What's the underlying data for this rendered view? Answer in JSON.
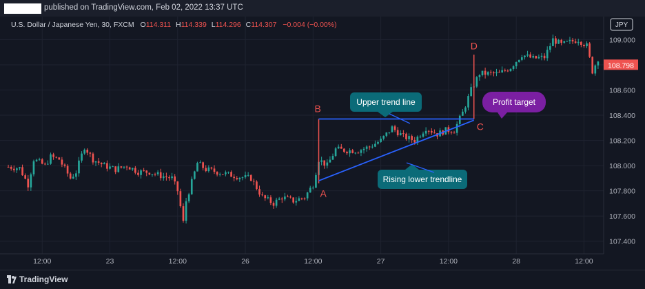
{
  "header": {
    "published": "published on TradingView.com, Feb 02, 2022 13:37 UTC"
  },
  "legend": {
    "symbol": "U.S. Dollar / Japanese Yen, 30, FXCM",
    "o_label": "O",
    "o_value": "114.311",
    "h_label": "H",
    "h_value": "114.339",
    "l_label": "L",
    "l_value": "114.296",
    "c_label": "C",
    "c_value": "114.307",
    "change": "−0.004 (−0.00%)"
  },
  "footer": {
    "brand": "TradingView"
  },
  "colors": {
    "background": "#131722",
    "up": "#26a69a",
    "down": "#ef5350",
    "trend_line": "#2962ff",
    "grid": "#1f2330",
    "label_teal": "#0b6b78",
    "label_purple": "#7b1fa2"
  },
  "chart_data": {
    "type": "candlestick",
    "currency_badge": "JPY",
    "last_price": "108.798",
    "ylim": [
      107.3,
      109.15
    ],
    "y_ticks": [
      {
        "value": 109.0,
        "label": "109.000"
      },
      {
        "value": 108.8,
        "label": "108.800"
      },
      {
        "value": 108.6,
        "label": "108.600"
      },
      {
        "value": 108.4,
        "label": "108.400"
      },
      {
        "value": 108.2,
        "label": "108.200"
      },
      {
        "value": 108.0,
        "label": "108.000"
      },
      {
        "value": 107.8,
        "label": "107.800"
      },
      {
        "value": 107.6,
        "label": "107.600"
      },
      {
        "value": 107.4,
        "label": "107.400"
      }
    ],
    "x_ticks": [
      {
        "index": 12,
        "label": "12:00"
      },
      {
        "index": 36,
        "label": "23"
      },
      {
        "index": 60,
        "label": "12:00"
      },
      {
        "index": 84,
        "label": "26"
      },
      {
        "index": 108,
        "label": "12:00"
      },
      {
        "index": 132,
        "label": "27"
      },
      {
        "index": 156,
        "label": "12:00"
      },
      {
        "index": 180,
        "label": "28"
      },
      {
        "index": 204,
        "label": "12:00"
      }
    ],
    "xlim": [
      -1,
      210
    ],
    "keypoints": [
      [
        0,
        107.99
      ],
      [
        4,
        107.98
      ],
      [
        7,
        107.85
      ],
      [
        9,
        108.05
      ],
      [
        13,
        108.0
      ],
      [
        15,
        108.07
      ],
      [
        18,
        108.05
      ],
      [
        22,
        107.9
      ],
      [
        24,
        107.95
      ],
      [
        27,
        108.15
      ],
      [
        30,
        108.05
      ],
      [
        34,
        108.0
      ],
      [
        38,
        107.97
      ],
      [
        42,
        108.0
      ],
      [
        46,
        107.95
      ],
      [
        50,
        107.95
      ],
      [
        54,
        107.92
      ],
      [
        58,
        107.9
      ],
      [
        60,
        107.8
      ],
      [
        62,
        107.55
      ],
      [
        63,
        107.72
      ],
      [
        67,
        108.02
      ],
      [
        70,
        107.97
      ],
      [
        74,
        107.95
      ],
      [
        78,
        107.93
      ],
      [
        82,
        107.91
      ],
      [
        86,
        107.9
      ],
      [
        90,
        107.75
      ],
      [
        94,
        107.7
      ],
      [
        97,
        107.75
      ],
      [
        101,
        107.72
      ],
      [
        105,
        107.75
      ],
      [
        108,
        107.85
      ],
      [
        110,
        108.05
      ],
      [
        113,
        108.0
      ],
      [
        116,
        108.13
      ],
      [
        120,
        108.12
      ],
      [
        124,
        108.12
      ],
      [
        128,
        108.15
      ],
      [
        132,
        108.2
      ],
      [
        136,
        108.3
      ],
      [
        140,
        108.23
      ],
      [
        144,
        108.2
      ],
      [
        148,
        108.3
      ],
      [
        152,
        108.25
      ],
      [
        155,
        108.28
      ],
      [
        158,
        108.28
      ],
      [
        161,
        108.42
      ],
      [
        164,
        108.6
      ],
      [
        167,
        108.73
      ],
      [
        170,
        108.73
      ],
      [
        174,
        108.73
      ],
      [
        178,
        108.78
      ],
      [
        182,
        108.88
      ],
      [
        186,
        108.85
      ],
      [
        190,
        108.86
      ],
      [
        193,
        109.0
      ],
      [
        196,
        108.96
      ],
      [
        199,
        108.98
      ],
      [
        202,
        109.0
      ],
      [
        205,
        108.95
      ],
      [
        207,
        108.75
      ],
      [
        209,
        108.85
      ]
    ],
    "drawings": {
      "A": {
        "index": 110,
        "price": 107.86,
        "label": "A"
      },
      "B": {
        "index": 110,
        "price": 108.37,
        "label": "B"
      },
      "C": {
        "index": 165,
        "price": 108.37,
        "label": "C"
      },
      "D": {
        "index": 165,
        "price": 108.88,
        "label": "D"
      },
      "upper_line": [
        [
          110,
          108.37
        ],
        [
          165,
          108.37
        ]
      ],
      "lower_line": [
        [
          110,
          107.88
        ],
        [
          165,
          108.36
        ]
      ],
      "annotations": [
        {
          "text": "Upper trend line",
          "color": "label_teal"
        },
        {
          "text": "Rising lower trendline",
          "color": "label_teal"
        },
        {
          "text": "Profit target",
          "color": "label_purple"
        }
      ]
    }
  }
}
